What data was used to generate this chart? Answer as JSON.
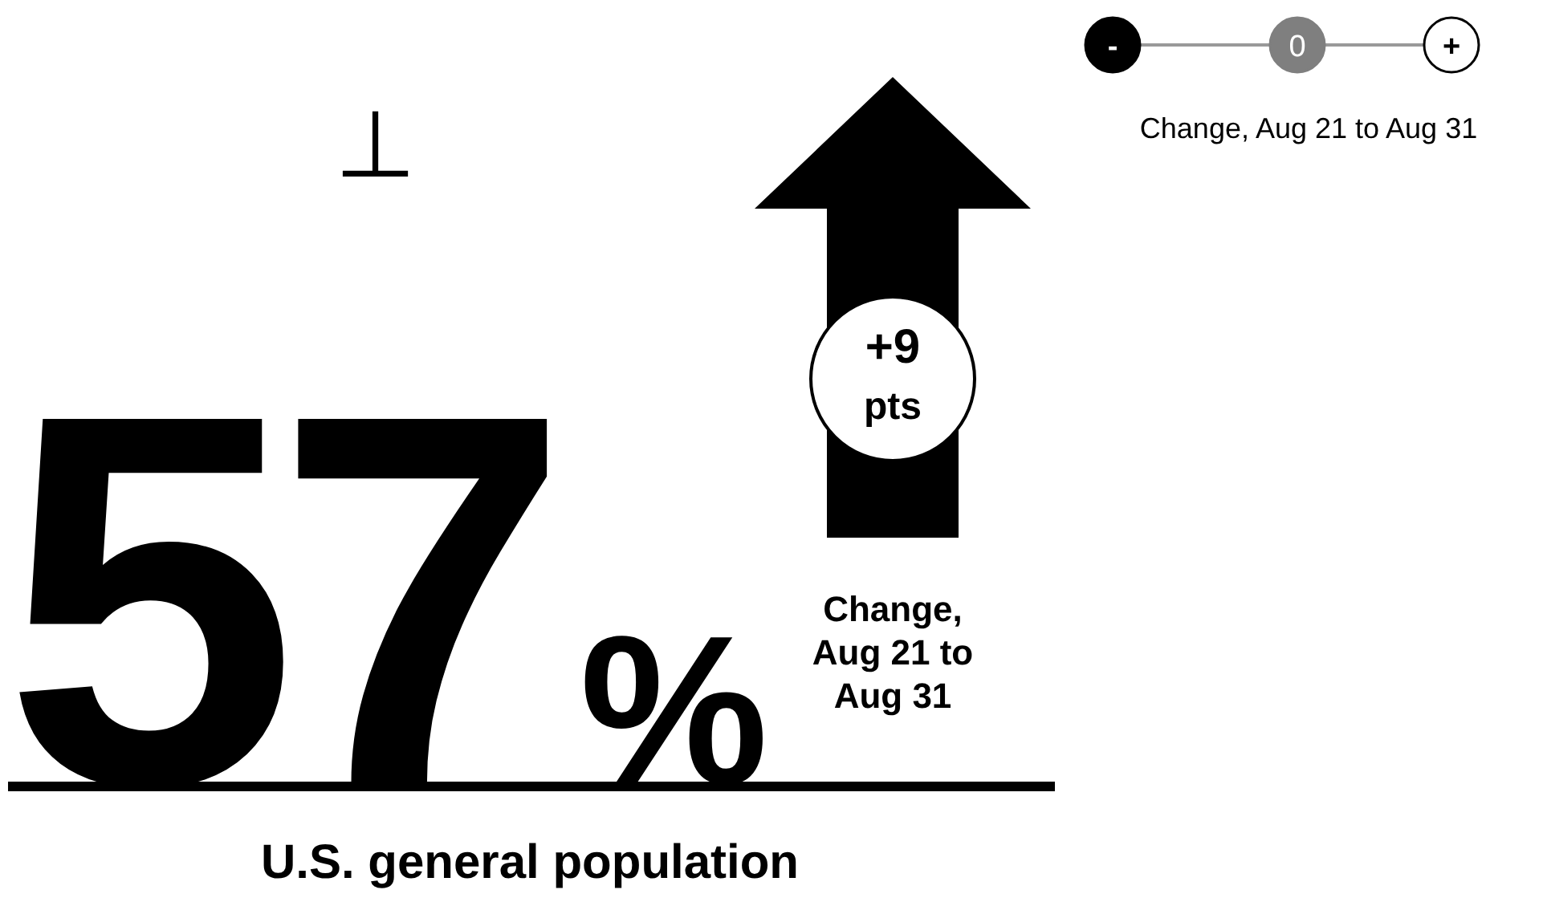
{
  "chart_data": {
    "type": "other",
    "title": "U.S. general population",
    "values": [
      57,
      9
    ],
    "value_labels": [
      "57%",
      "+9 pts"
    ],
    "annotations": [
      "Change, Aug 21 to Aug 31",
      "⊥",
      "-",
      "0",
      "+",
      "Change, Aug 21 to Aug 31"
    ]
  }
}
